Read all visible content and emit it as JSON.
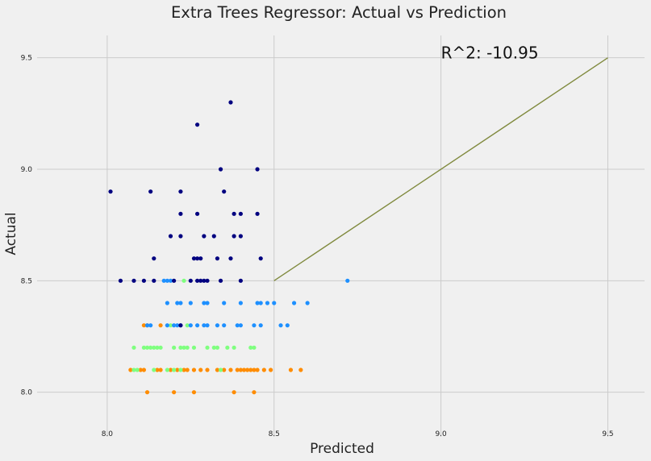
{
  "chart_data": {
    "type": "scatter",
    "title": "Extra Trees Regressor: Actual vs Prediction",
    "xlabel": "Predicted",
    "ylabel": "Actual",
    "xlim": [
      7.79,
      9.61
    ],
    "ylim": [
      7.8,
      9.6
    ],
    "x_ticks": [
      8.0,
      8.5,
      9.0,
      9.5
    ],
    "y_ticks": [
      8.0,
      8.5,
      9.0,
      9.5
    ],
    "x_tick_labels": [
      "8.0",
      "8.5",
      "9.0",
      "9.5"
    ],
    "y_tick_labels": [
      "8.0",
      "8.5",
      "9.0",
      "9.5"
    ],
    "grid": true,
    "annotation": {
      "text": "R^2: -10.95",
      "x": 9.0,
      "y": 9.5
    },
    "reference_line": {
      "x": [
        8.5,
        9.5
      ],
      "y": [
        8.5,
        9.5
      ],
      "color": "#808a3e"
    },
    "series": [
      {
        "color": "#ff8c00",
        "points": [
          [
            8.12,
            8.0
          ],
          [
            8.2,
            8.0
          ],
          [
            8.26,
            8.0
          ],
          [
            8.38,
            8.0
          ],
          [
            8.44,
            8.0
          ],
          [
            8.07,
            8.1
          ],
          [
            8.1,
            8.1
          ],
          [
            8.11,
            8.1
          ],
          [
            8.15,
            8.1
          ],
          [
            8.16,
            8.1
          ],
          [
            8.19,
            8.1
          ],
          [
            8.21,
            8.1
          ],
          [
            8.23,
            8.1
          ],
          [
            8.24,
            8.1
          ],
          [
            8.26,
            8.1
          ],
          [
            8.28,
            8.1
          ],
          [
            8.3,
            8.1
          ],
          [
            8.33,
            8.1
          ],
          [
            8.35,
            8.1
          ],
          [
            8.37,
            8.1
          ],
          [
            8.39,
            8.1
          ],
          [
            8.4,
            8.1
          ],
          [
            8.41,
            8.1
          ],
          [
            8.42,
            8.1
          ],
          [
            8.43,
            8.1
          ],
          [
            8.44,
            8.1
          ],
          [
            8.45,
            8.1
          ],
          [
            8.47,
            8.1
          ],
          [
            8.49,
            8.1
          ],
          [
            8.55,
            8.1
          ],
          [
            8.58,
            8.1
          ],
          [
            8.11,
            8.3
          ],
          [
            8.12,
            8.3
          ],
          [
            8.16,
            8.3
          ]
        ]
      },
      {
        "color": "#7fff7f",
        "points": [
          [
            8.08,
            8.1
          ],
          [
            8.09,
            8.1
          ],
          [
            8.14,
            8.1
          ],
          [
            8.18,
            8.1
          ],
          [
            8.2,
            8.1
          ],
          [
            8.22,
            8.1
          ],
          [
            8.34,
            8.1
          ],
          [
            8.08,
            8.2
          ],
          [
            8.11,
            8.2
          ],
          [
            8.12,
            8.2
          ],
          [
            8.13,
            8.2
          ],
          [
            8.14,
            8.2
          ],
          [
            8.15,
            8.2
          ],
          [
            8.16,
            8.2
          ],
          [
            8.2,
            8.2
          ],
          [
            8.22,
            8.2
          ],
          [
            8.23,
            8.2
          ],
          [
            8.24,
            8.2
          ],
          [
            8.26,
            8.2
          ],
          [
            8.3,
            8.2
          ],
          [
            8.32,
            8.2
          ],
          [
            8.33,
            8.2
          ],
          [
            8.36,
            8.2
          ],
          [
            8.38,
            8.2
          ],
          [
            8.43,
            8.2
          ],
          [
            8.44,
            8.2
          ],
          [
            8.19,
            8.3
          ],
          [
            8.24,
            8.3
          ],
          [
            8.23,
            8.5
          ]
        ]
      },
      {
        "color": "#1e90ff",
        "points": [
          [
            8.12,
            8.3
          ],
          [
            8.13,
            8.3
          ],
          [
            8.18,
            8.3
          ],
          [
            8.2,
            8.3
          ],
          [
            8.21,
            8.3
          ],
          [
            8.22,
            8.3
          ],
          [
            8.25,
            8.3
          ],
          [
            8.27,
            8.3
          ],
          [
            8.29,
            8.3
          ],
          [
            8.3,
            8.3
          ],
          [
            8.33,
            8.3
          ],
          [
            8.35,
            8.3
          ],
          [
            8.39,
            8.3
          ],
          [
            8.4,
            8.3
          ],
          [
            8.44,
            8.3
          ],
          [
            8.46,
            8.3
          ],
          [
            8.52,
            8.3
          ],
          [
            8.54,
            8.3
          ],
          [
            8.18,
            8.4
          ],
          [
            8.21,
            8.4
          ],
          [
            8.22,
            8.4
          ],
          [
            8.25,
            8.4
          ],
          [
            8.29,
            8.4
          ],
          [
            8.3,
            8.4
          ],
          [
            8.35,
            8.4
          ],
          [
            8.4,
            8.4
          ],
          [
            8.45,
            8.4
          ],
          [
            8.46,
            8.4
          ],
          [
            8.48,
            8.4
          ],
          [
            8.5,
            8.4
          ],
          [
            8.56,
            8.4
          ],
          [
            8.6,
            8.4
          ],
          [
            8.17,
            8.5
          ],
          [
            8.18,
            8.5
          ],
          [
            8.19,
            8.5
          ],
          [
            8.72,
            8.5
          ]
        ]
      },
      {
        "color": "#000080",
        "points": [
          [
            8.37,
            9.3
          ],
          [
            8.27,
            9.2
          ],
          [
            8.34,
            9.0
          ],
          [
            8.45,
            9.0
          ],
          [
            8.01,
            8.9
          ],
          [
            8.13,
            8.9
          ],
          [
            8.22,
            8.9
          ],
          [
            8.35,
            8.9
          ],
          [
            8.22,
            8.8
          ],
          [
            8.27,
            8.8
          ],
          [
            8.38,
            8.8
          ],
          [
            8.4,
            8.8
          ],
          [
            8.45,
            8.8
          ],
          [
            8.19,
            8.7
          ],
          [
            8.22,
            8.7
          ],
          [
            8.29,
            8.7
          ],
          [
            8.32,
            8.7
          ],
          [
            8.38,
            8.7
          ],
          [
            8.4,
            8.7
          ],
          [
            8.14,
            8.6
          ],
          [
            8.26,
            8.6
          ],
          [
            8.27,
            8.6
          ],
          [
            8.28,
            8.6
          ],
          [
            8.33,
            8.6
          ],
          [
            8.37,
            8.6
          ],
          [
            8.46,
            8.6
          ],
          [
            8.04,
            8.5
          ],
          [
            8.08,
            8.5
          ],
          [
            8.11,
            8.5
          ],
          [
            8.14,
            8.5
          ],
          [
            8.2,
            8.5
          ],
          [
            8.25,
            8.5
          ],
          [
            8.27,
            8.5
          ],
          [
            8.28,
            8.5
          ],
          [
            8.29,
            8.5
          ],
          [
            8.3,
            8.5
          ],
          [
            8.34,
            8.5
          ],
          [
            8.4,
            8.5
          ],
          [
            8.22,
            8.3
          ]
        ]
      }
    ]
  }
}
